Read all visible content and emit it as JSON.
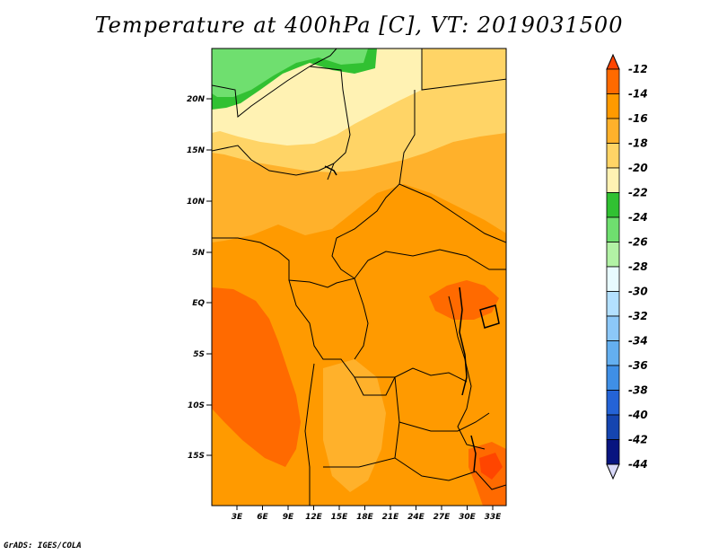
{
  "title": "Temperature at 400hPa [C], VT: 2019031500",
  "credit": "GrADS: IGES/COLA",
  "map": {
    "lat_labels": [
      "20N",
      "15N",
      "10N",
      "5N",
      "EQ",
      "5S",
      "10S",
      "15S"
    ],
    "lon_labels": [
      "3E",
      "6E",
      "9E",
      "12E",
      "15E",
      "18E",
      "21E",
      "24E",
      "27E",
      "30E",
      "33E"
    ]
  },
  "colorbar": {
    "labels": [
      "-12",
      "-14",
      "-16",
      "-18",
      "-20",
      "-22",
      "-24",
      "-26",
      "-28",
      "-30",
      "-32",
      "-34",
      "-36",
      "-38",
      "-40",
      "-42",
      "-44"
    ],
    "colors": [
      "#ff4500",
      "#ff6a00",
      "#ff9a00",
      "#ffb12b",
      "#ffd466",
      "#fff2b3",
      "#31c132",
      "#6fdf6f",
      "#b2f2a5",
      "#e8fbff",
      "#b3e0ff",
      "#8cc8f8",
      "#64aff0",
      "#3f8fe6",
      "#2463d6",
      "#1545b0",
      "#081480"
    ],
    "below_color": "#d8d8f8",
    "above_color": "#ff4500"
  }
}
